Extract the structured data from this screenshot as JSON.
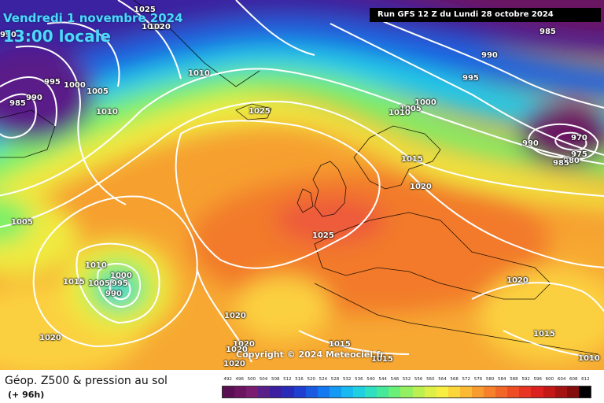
{
  "header": {
    "date": "Vendredi 1 novembre 2024",
    "time": "13:00 locale",
    "run": "Run GFS 12 Z du Lundi 28 octobre 2024"
  },
  "copyright": "Copyright © 2024 Meteociel.fr",
  "footer": {
    "title": "Géop. Z500 & pression au sol",
    "subtitle": "(+ 96h)"
  },
  "scale": {
    "values": [
      "492",
      "496",
      "500",
      "504",
      "508",
      "512",
      "516",
      "520",
      "524",
      "528",
      "532",
      "536",
      "540",
      "544",
      "548",
      "552",
      "556",
      "560",
      "564",
      "568",
      "572",
      "576",
      "580",
      "584",
      "588",
      "592",
      "596",
      "600",
      "604",
      "608",
      "612"
    ],
    "colors": [
      "#5a0f52",
      "#6b1460",
      "#7a1c70",
      "#5a1f88",
      "#3a1fa0",
      "#2a2ab8",
      "#1f3fd0",
      "#1a5ae0",
      "#1478f0",
      "#1499f5",
      "#18b8f0",
      "#20d0e0",
      "#2ee0c0",
      "#46e89a",
      "#6af078",
      "#94f060",
      "#bcf050",
      "#def048",
      "#f6ee40",
      "#fbd63a",
      "#fbba34",
      "#f99c30",
      "#f6802c",
      "#f26628",
      "#ee4c24",
      "#e83422",
      "#dc2020",
      "#c41818",
      "#a41212",
      "#840c0c",
      "#000000"
    ]
  },
  "isobars": {
    "985_a": "985",
    "985_b": "985",
    "985_c": "985",
    "990_a": "990",
    "990_b": "990",
    "990_c": "990",
    "995_a": "995",
    "995_b": "995",
    "995_c": "995",
    "1000_a": "1000",
    "1000_b": "1000",
    "1000_c": "1000",
    "1005_a": "1005",
    "1005_b": "1005",
    "1005_c": "1005",
    "1010_a": "1010",
    "1010_b": "1010",
    "1010_c": "1010",
    "1010_d": "1010",
    "1010_e": "1010",
    "1010_f": "1010",
    "1015_a": "1015",
    "1015_b": "1015",
    "1015_c": "1015",
    "1015_d": "1015",
    "1015_e": "1015",
    "1020_a": "1020",
    "1020_b": "1020",
    "1020_c": "1020",
    "1020_d": "1020",
    "1020_e": "1020",
    "1020_f": "1020",
    "1020_g": "1020",
    "1020_h": "1020",
    "1025_a": "1025",
    "1025_b": "1025",
    "1025_c": "1025",
    "970": "970",
    "975": "975",
    "980": "980",
    "990_low": "990",
    "990_west": "990",
    "985_west": "985",
    "990_left": "990"
  }
}
